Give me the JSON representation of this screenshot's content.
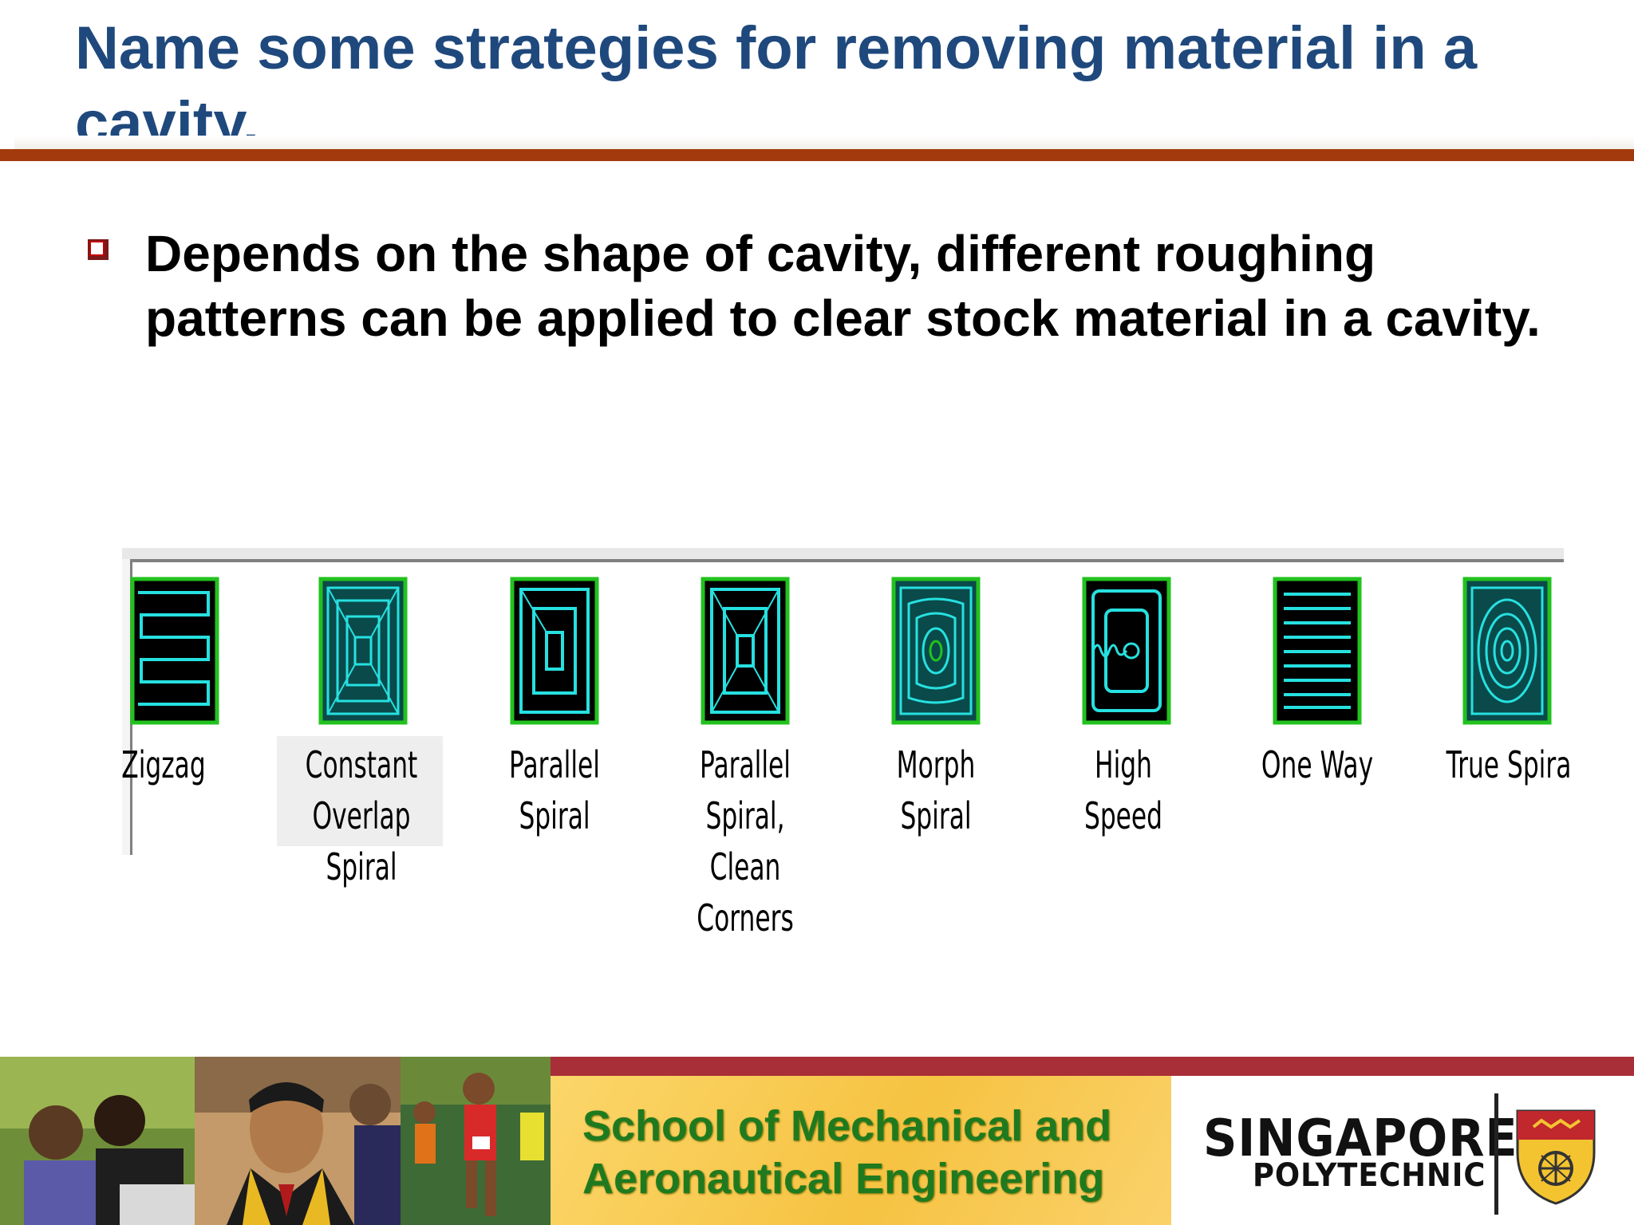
{
  "slide": {
    "title": "Name some strategies for removing material in a cavity.",
    "bullet": "Depends on the shape of cavity, different roughing patterns can be applied to clear stock material in a cavity."
  },
  "patterns": [
    {
      "label": "Zigzag",
      "icon": "zigzag-pattern-icon"
    },
    {
      "label": "Constant\nOverlap Spiral",
      "icon": "constant-overlap-spiral-icon",
      "selected": true
    },
    {
      "label": "Parallel Spiral",
      "icon": "parallel-spiral-icon"
    },
    {
      "label": "Parallel Spiral,\nClean Corners",
      "icon": "parallel-spiral-clean-corners-icon"
    },
    {
      "label": "Morph Spiral",
      "icon": "morph-spiral-icon"
    },
    {
      "label": "High Speed",
      "icon": "high-speed-icon"
    },
    {
      "label": "One Way",
      "icon": "one-way-icon"
    },
    {
      "label": "True Spira",
      "icon": "true-spiral-icon"
    }
  ],
  "footer": {
    "school": "School of Mechanical and Aeronautical Engineering",
    "logo_line1": "SINGAPORE",
    "logo_line2": "POLYTECHNIC"
  },
  "colors": {
    "title": "#1f497d",
    "accent_bar": "#a23a0d",
    "icon_border": "#22c21e",
    "icon_line": "#27e0e0",
    "school_text": "#1f7a1f"
  }
}
